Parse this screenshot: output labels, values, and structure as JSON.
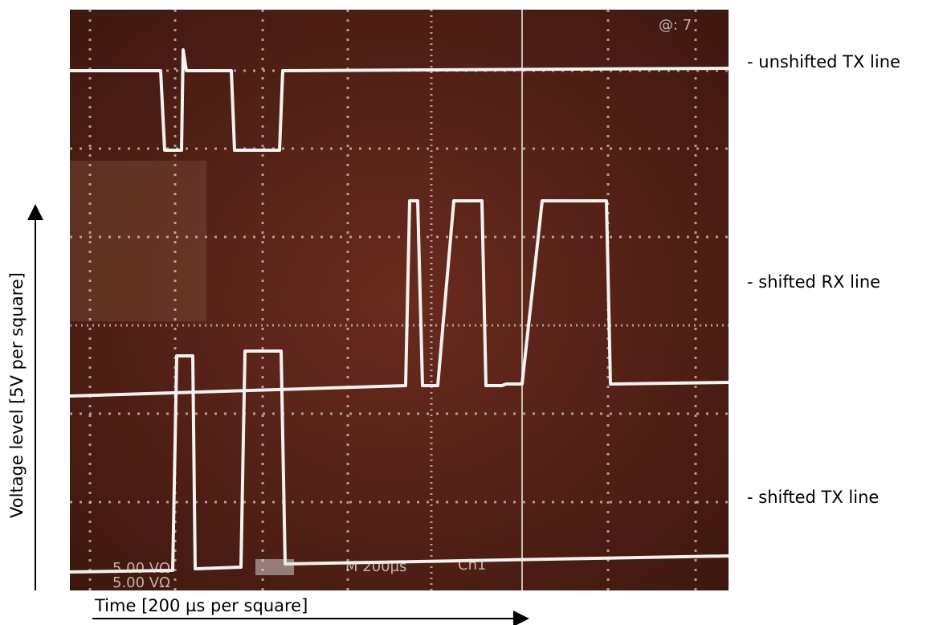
{
  "trace_labels": [
    "- unshifted TX line",
    "- shifted RX line",
    "- shifted TX line"
  ],
  "axis_labels": {
    "y": "Voltage level [5V per square]",
    "x": "Time [200 µs per square]"
  },
  "screen_text": {
    "top_right": "@: 7",
    "bottom": [
      "5.00 VΩ",
      "5.00 VΩ",
      "M 200µs",
      "Ch1"
    ]
  }
}
